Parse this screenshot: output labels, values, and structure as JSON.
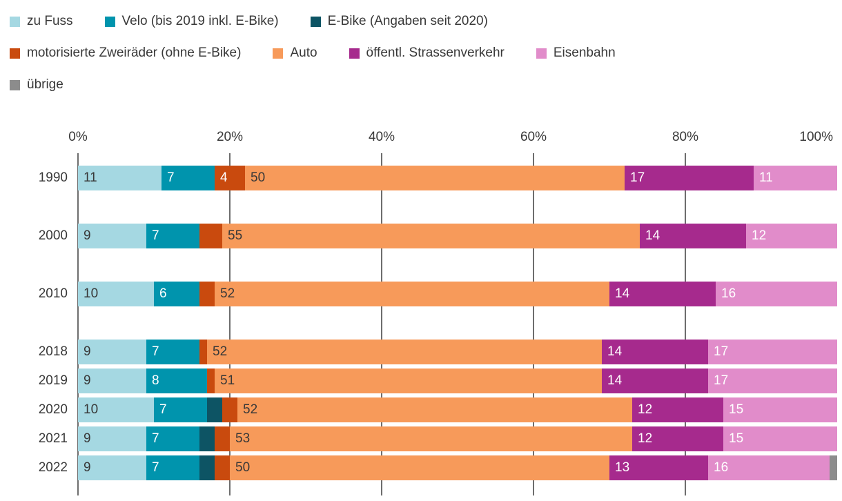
{
  "legend": {
    "rows": [
      [
        0,
        1,
        2
      ],
      [
        3,
        4,
        5,
        6
      ],
      [
        7
      ]
    ]
  },
  "chart_data": {
    "type": "bar",
    "orientation": "horizontal",
    "stacked": true,
    "unit": "%",
    "x_axis": {
      "min": 0,
      "max": 100,
      "tick_labels": [
        "0%",
        "20%",
        "40%",
        "60%",
        "80%",
        "100%"
      ],
      "tick_values": [
        0,
        20,
        40,
        60,
        80,
        100
      ],
      "gridlines": true
    },
    "categories": [
      "1990",
      "2000",
      "2010",
      "2018",
      "2019",
      "2020",
      "2021",
      "2022"
    ],
    "series": [
      {
        "key": "zu-fuss",
        "name": "zu Fuss",
        "color": "#a5d8e2",
        "label_color": "#383838",
        "values": [
          11,
          9,
          10,
          9,
          9,
          10,
          9,
          9
        ]
      },
      {
        "key": "velo",
        "name": "Velo (bis 2019 inkl. E-Bike)",
        "color": "#0094ad",
        "label_color": "#ffffff",
        "values": [
          7,
          7,
          6,
          7,
          8,
          7,
          7,
          7
        ]
      },
      {
        "key": "e-bike",
        "name": "E-Bike (Angaben seit 2020)",
        "color": "#0d5464",
        "label_color": "#ffffff",
        "values": [
          0,
          0,
          0,
          0,
          0,
          2,
          2,
          2
        ]
      },
      {
        "key": "motorisierte-zweiraeder",
        "name": "motorisierte Zweiräder (ohne E-Bike)",
        "color": "#c94a0e",
        "label_color": "#ffffff",
        "values": [
          4,
          3,
          2,
          1,
          1,
          2,
          2,
          2
        ]
      },
      {
        "key": "auto",
        "name": "Auto",
        "color": "#f79a5a",
        "label_color": "#383838",
        "values": [
          50,
          55,
          52,
          52,
          51,
          52,
          53,
          50
        ]
      },
      {
        "key": "oeffentl-strassenverkehr",
        "name": "öffentl. Strassenverkehr",
        "color": "#a62a8d",
        "label_color": "#ffffff",
        "values": [
          17,
          14,
          14,
          14,
          14,
          12,
          12,
          13
        ]
      },
      {
        "key": "eisenbahn",
        "name": "Eisenbahn",
        "color": "#e18cca",
        "label_color": "#ffffff",
        "values": [
          11,
          12,
          16,
          17,
          17,
          15,
          15,
          16
        ]
      },
      {
        "key": "uebrige",
        "name": "übrige",
        "color": "#8c8c8c",
        "label_color": "#ffffff",
        "values": [
          0,
          0,
          0,
          0,
          0,
          0,
          0,
          1
        ]
      }
    ],
    "value_label_min": 4
  }
}
